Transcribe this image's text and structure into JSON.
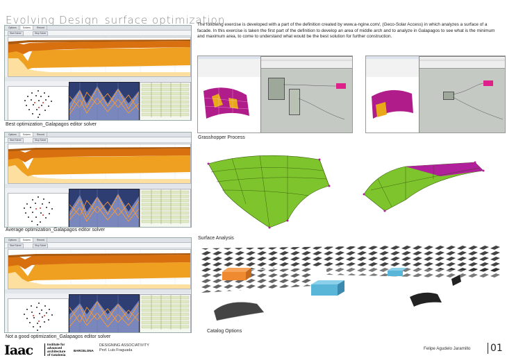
{
  "title": "Evolving Design_surface optimization",
  "intro": "The following exercise is developed with a part of the definition created by www.a-ngine.com/, (Geco-Solar Access) in which analyzes a surface of a facade. In this exercise is taken the first part of the definition to develop an area of middle arch and to analyze in Galapagos to see what is the minimum and maximum area, to come to understand what would be the best solution for further construction.",
  "galapagos_tabs": [
    "Options",
    "Solvers",
    "Record"
  ],
  "galapagos_buttons": [
    "Start Solver",
    "Stop Solver"
  ],
  "captions": {
    "best": "Best optimization_Galapagos editor solver",
    "average": "Average optimization_Galapagos editor solver",
    "not_good": "Not a good optimization_Galapagos editor solver",
    "grasshopper": "Grasshopper Process",
    "surface": "Surface Analysis",
    "catalog": "Catalog Options"
  },
  "footer": {
    "logo": "Iaac",
    "institute": [
      "Institute for",
      "advanced",
      "architecture",
      "of Catalonia"
    ],
    "city": "BARCELONA",
    "course": "DESIGNING ASSOCIATIVITY",
    "professor": "Prof. Luis Fraguada",
    "author": "Felipe Agudelo Jaramillo",
    "page": "01"
  },
  "colors": {
    "galapagos_orange": "#f0a020",
    "galapagos_dark": "#d87010",
    "surface_green": "#7ec42c",
    "surface_magenta": "#b0209a",
    "catalog_orange": "#f08a30",
    "catalog_blue": "#5ab6d8"
  }
}
